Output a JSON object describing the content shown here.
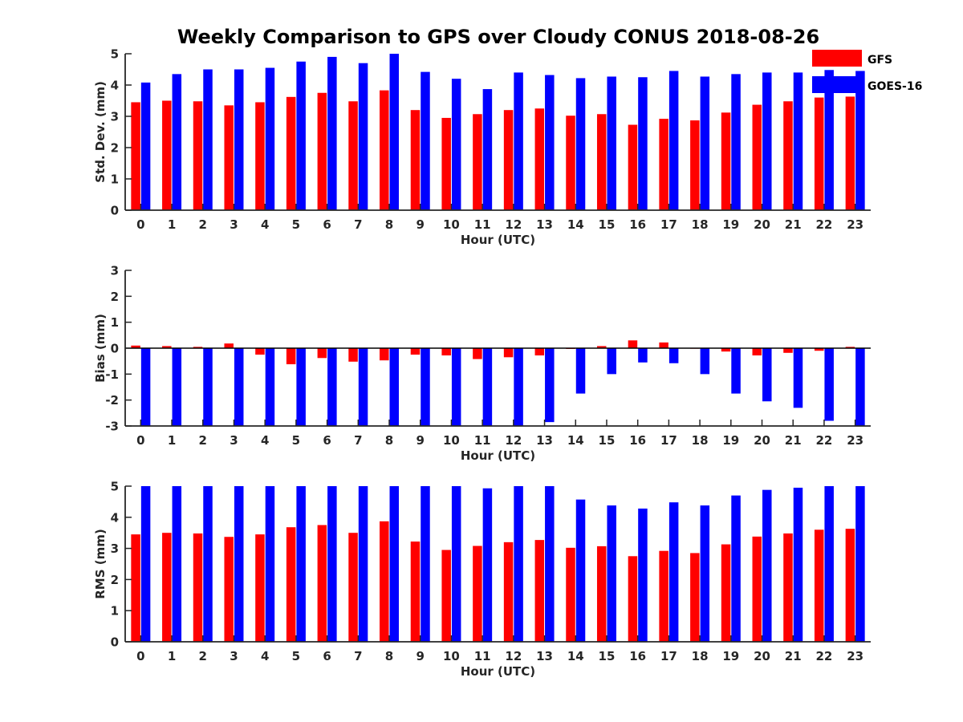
{
  "chart_data": {
    "type": "bar",
    "title": "Weekly Comparison to GPS over Cloudy CONUS 2018-08-26",
    "legend": {
      "placement": "top-right",
      "entries": [
        "GFS",
        "GOES-16"
      ]
    },
    "colors": {
      "GFS": "#ff0000",
      "GOES-16": "#0000ff",
      "axis": "#262626"
    },
    "categories": [
      "0",
      "1",
      "2",
      "3",
      "4",
      "5",
      "6",
      "7",
      "8",
      "9",
      "10",
      "11",
      "12",
      "13",
      "14",
      "15",
      "16",
      "17",
      "18",
      "19",
      "20",
      "21",
      "22",
      "23"
    ],
    "panels": [
      {
        "ylabel": "Std. Dev. (mm)",
        "xlabel": "Hour (UTC)",
        "ylim": [
          0,
          5
        ],
        "yticks": [
          "0",
          "1",
          "2",
          "3",
          "4",
          "5"
        ],
        "series": [
          {
            "name": "GFS",
            "values": [
              3.45,
              3.5,
              3.48,
              3.35,
              3.45,
              3.62,
              3.75,
              3.48,
              3.83,
              3.2,
              2.95,
              3.07,
              3.2,
              3.25,
              3.02,
              3.07,
              2.73,
              2.92,
              2.87,
              3.12,
              3.37,
              3.48,
              3.6,
              3.63
            ]
          },
          {
            "name": "GOES-16",
            "values": [
              4.08,
              4.35,
              4.5,
              4.5,
              4.55,
              4.75,
              4.9,
              4.7,
              5.0,
              4.42,
              4.2,
              3.87,
              4.4,
              4.32,
              4.22,
              4.27,
              4.25,
              4.45,
              4.27,
              4.35,
              4.4,
              4.4,
              4.48,
              4.45
            ]
          }
        ]
      },
      {
        "ylabel": "Bias (mm)",
        "xlabel": "Hour (UTC)",
        "ylim": [
          -3,
          3
        ],
        "yticks": [
          "-3",
          "-2",
          "-1",
          "0",
          "1",
          "2",
          "3"
        ],
        "series": [
          {
            "name": "GFS",
            "values": [
              0.1,
              0.08,
              0.05,
              0.18,
              -0.25,
              -0.62,
              -0.38,
              -0.52,
              -0.47,
              -0.25,
              -0.28,
              -0.42,
              -0.35,
              -0.28,
              -0.03,
              0.08,
              0.3,
              0.22,
              -0.02,
              -0.13,
              -0.28,
              -0.18,
              -0.1,
              0.05
            ]
          },
          {
            "name": "GOES-16",
            "values": [
              -3.0,
              -3.0,
              -3.0,
              -3.0,
              -3.0,
              -3.0,
              -3.0,
              -3.0,
              -3.0,
              -3.0,
              -3.0,
              -3.0,
              -3.0,
              -2.85,
              -1.75,
              -1.0,
              -0.55,
              -0.58,
              -1.0,
              -1.75,
              -2.05,
              -2.3,
              -2.8,
              -3.0
            ]
          }
        ]
      },
      {
        "ylabel": "RMS (mm)",
        "xlabel": "Hour (UTC)",
        "ylim": [
          0,
          5
        ],
        "yticks": [
          "0",
          "1",
          "2",
          "3",
          "4",
          "5"
        ],
        "series": [
          {
            "name": "GFS",
            "values": [
              3.45,
              3.5,
              3.48,
              3.37,
              3.45,
              3.68,
              3.75,
              3.5,
              3.87,
              3.22,
              2.95,
              3.08,
              3.2,
              3.27,
              3.02,
              3.07,
              2.75,
              2.92,
              2.85,
              3.13,
              3.38,
              3.48,
              3.6,
              3.63
            ]
          },
          {
            "name": "GOES-16",
            "values": [
              5.0,
              5.0,
              5.0,
              5.0,
              5.0,
              5.0,
              5.0,
              5.0,
              5.0,
              5.0,
              5.0,
              4.93,
              5.0,
              5.0,
              4.57,
              4.38,
              4.28,
              4.48,
              4.38,
              4.7,
              4.88,
              4.95,
              5.0,
              5.0
            ]
          }
        ]
      }
    ]
  }
}
